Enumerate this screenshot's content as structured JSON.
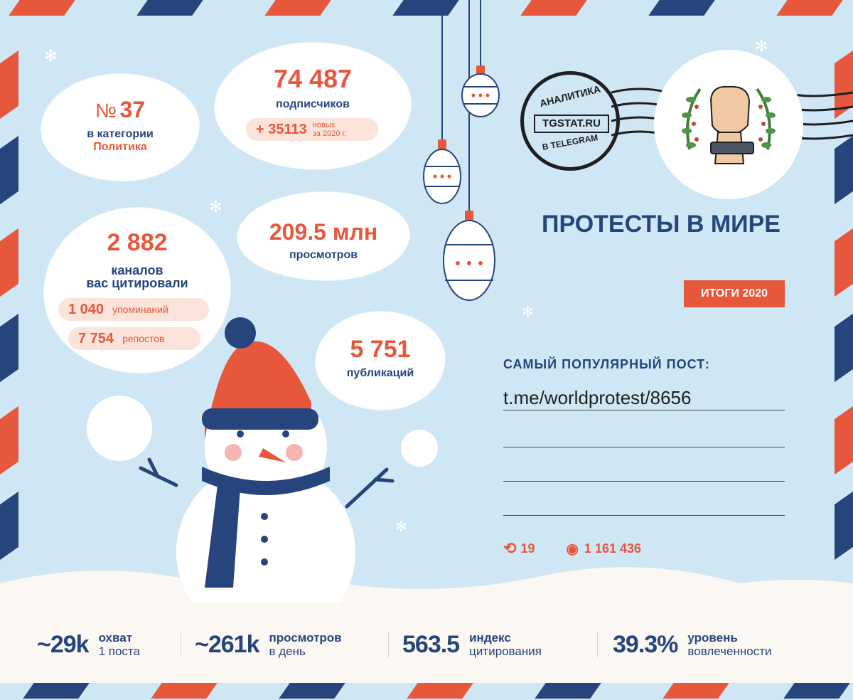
{
  "colors": {
    "accent_red": "#e6573c",
    "brand_blue": "#27457d",
    "background": "#cfe6f4",
    "pill": "#fbe3da"
  },
  "rank": {
    "prefix": "№",
    "value": "37",
    "label": "в категории",
    "category": "Политика"
  },
  "subscribers": {
    "value": "74 487",
    "label": "подписчиков",
    "new_value": "+ 35113",
    "new_label_1": "новых",
    "new_label_2": "за 2020 г."
  },
  "citations": {
    "value": "2 882",
    "label_1": "каналов",
    "label_2": "вас цитировали",
    "mentions_value": "1 040",
    "mentions_label": "упоминаний",
    "reposts_value": "7 754",
    "reposts_label": "репостов"
  },
  "views": {
    "value": "209.5 млн",
    "label": "просмотров"
  },
  "publications": {
    "value": "5 751",
    "label": "публикаций"
  },
  "postmark": {
    "top": "АНАЛИТИКА",
    "brand": "TGSTAT.RU",
    "bottom": "В TELEGRAM"
  },
  "channel": {
    "title": "ПРОТЕСТЫ В МИРЕ",
    "badge": "ИТОГИ 2020"
  },
  "popular_post": {
    "heading": "САМЫЙ ПОПУЛЯРНЫЙ ПОСТ:",
    "link": "t.me/worldprotest/8656",
    "reposts": "19",
    "views": "1 161 436"
  },
  "stats": [
    {
      "value": "~29k",
      "label_1": "охват",
      "label_2": "1 поста"
    },
    {
      "value": "~261k",
      "label_1": "просмотров",
      "label_2": "в день"
    },
    {
      "value": "563.5",
      "label_1": "индекс",
      "label_2": "цитирования"
    },
    {
      "value": "39.3%",
      "label_1": "уровень",
      "label_2": "вовлеченности"
    }
  ],
  "icons": [
    "snowflake-icon",
    "repost-icon",
    "eye-icon",
    "raised-fist-icon"
  ]
}
